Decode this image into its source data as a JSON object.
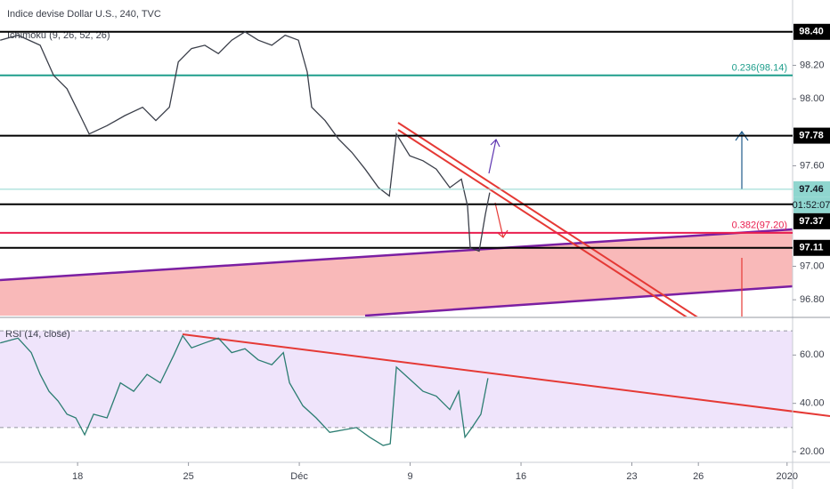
{
  "chart_data": [
    {
      "type": "line",
      "title": "Indice devise Dollar U.S., 240, TVC",
      "subtitle": "Ichimoku (9, 26, 52, 26)",
      "x": [
        -3.49,
        -2.69,
        -1.69,
        -1.08,
        -0.48,
        0.12,
        0.52,
        1.33,
        2.13,
        2.93,
        3.53,
        4.14,
        4.54,
        5.14,
        5.74,
        6.35,
        6.95,
        7.55,
        8.15,
        8.76,
        9.36,
        9.96,
        10.36,
        10.56,
        11.16,
        11.77,
        12.37,
        12.97,
        13.57,
        14.06,
        14.38,
        14.98,
        15.58,
        16.18,
        16.79,
        17.31,
        17.59,
        17.71,
        18.11,
        18.39,
        18.59
      ],
      "series": [
        {
          "color": "#3b3f4a",
          "values": [
            98.35,
            98.38,
            98.32,
            98.14,
            98.06,
            97.9,
            97.79,
            97.84,
            97.9,
            97.95,
            97.87,
            97.95,
            98.22,
            98.3,
            98.32,
            98.27,
            98.35,
            98.4,
            98.35,
            98.32,
            98.38,
            98.35,
            98.16,
            97.95,
            97.87,
            97.76,
            97.68,
            97.58,
            97.47,
            97.42,
            97.79,
            97.66,
            97.63,
            97.58,
            97.47,
            97.52,
            97.36,
            97.11,
            97.09,
            97.31,
            97.44
          ]
        }
      ],
      "xlim": [
        -3.5,
        32.25
      ],
      "ylim": [
        96.7,
        98.59
      ],
      "yticks": [
        {
          "value": 96.8,
          "label": "96.80"
        },
        {
          "value": 97.0,
          "label": "97.00"
        },
        {
          "value": 97.6,
          "label": "97.60"
        },
        {
          "value": 98.0,
          "label": "98.00"
        },
        {
          "value": 98.2,
          "label": "98.20"
        }
      ],
      "levels": [
        {
          "value": 98.4,
          "color": "#000000"
        },
        {
          "value": 98.14,
          "color": "#1f9e8c"
        },
        {
          "value": 97.78,
          "color": "#000000"
        },
        {
          "value": 97.37,
          "color": "#000000"
        },
        {
          "value": 97.2,
          "color": "#e91e4f"
        },
        {
          "value": 97.11,
          "color": "#000000"
        }
      ],
      "annotations": [
        {
          "value": 98.14,
          "label": "0.236(98.14)",
          "color": "#1f9e8c"
        },
        {
          "value": 97.2,
          "label": "0.382(97.20)",
          "color": "#e91e4f"
        }
      ],
      "price_labels": [
        {
          "value": 98.4,
          "label": "98.40",
          "color": "#000000"
        },
        {
          "value": 97.78,
          "label": "97.78",
          "color": "#000000"
        },
        {
          "value": 97.46,
          "label": "97.46",
          "color": "#8fd6cf",
          "current": true
        },
        {
          "value": 97.37,
          "label": "97.37",
          "color": "#000000"
        },
        {
          "value": 97.11,
          "label": "97.11",
          "color": "#000000"
        }
      ],
      "countdown": "01:52:07"
    },
    {
      "type": "line",
      "title": "RSI (14, close)",
      "x": [
        -3.49,
        -2.69,
        -2.09,
        -1.69,
        -1.29,
        -0.88,
        -0.48,
        -0.08,
        0.32,
        0.72,
        1.33,
        1.93,
        2.53,
        3.13,
        3.73,
        4.34,
        4.74,
        5.14,
        5.74,
        6.35,
        6.95,
        7.55,
        8.15,
        8.76,
        9.28,
        9.56,
        10.16,
        10.76,
        11.37,
        11.97,
        12.57,
        13.17,
        13.78,
        14.1,
        14.38,
        14.98,
        15.58,
        16.18,
        16.79,
        17.19,
        17.47,
        17.79,
        18.19,
        18.51
      ],
      "series": [
        {
          "color": "#2c7d72",
          "values": [
            65,
            67,
            61,
            52,
            45,
            41,
            35.5,
            34,
            27,
            35.5,
            34,
            48.5,
            45,
            52,
            48.5,
            60,
            68,
            63,
            65,
            67,
            61,
            62.6,
            58,
            56,
            61,
            48.5,
            39,
            34,
            28,
            29,
            30,
            26,
            22.6,
            23.3,
            55,
            50,
            45,
            43,
            37.4,
            45,
            26,
            30,
            35.5,
            50.4
          ]
        }
      ],
      "xlim": [
        -3.5,
        32.25
      ],
      "ylim": [
        15.6,
        75.2
      ],
      "band": [
        30,
        70
      ],
      "yticks": [
        {
          "value": 20,
          "label": "20.00"
        },
        {
          "value": 40,
          "label": "40.00"
        },
        {
          "value": 60,
          "label": "60.00"
        }
      ],
      "xticks": [
        {
          "value": 0,
          "label": "18"
        },
        {
          "value": 5,
          "label": "25"
        },
        {
          "value": 10,
          "label": "Déc"
        },
        {
          "value": 15,
          "label": "9"
        },
        {
          "value": 20,
          "label": "16"
        },
        {
          "value": 25,
          "label": "23"
        },
        {
          "value": 28,
          "label": "26"
        },
        {
          "value": 32,
          "label": "2020"
        }
      ]
    }
  ]
}
